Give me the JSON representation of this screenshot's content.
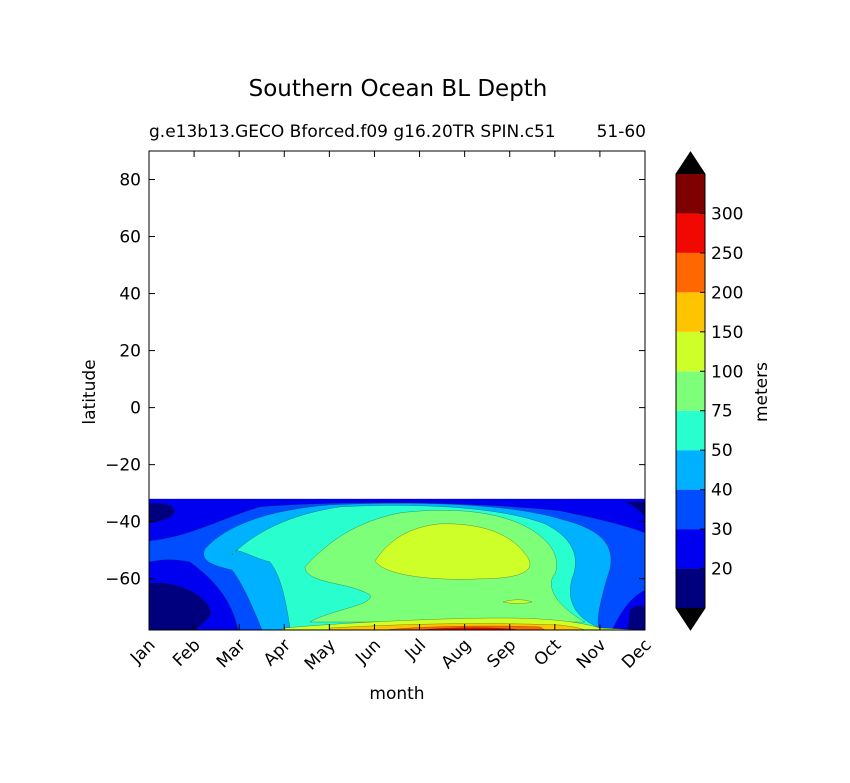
{
  "chart_data": {
    "type": "heatmap",
    "title": "Southern Ocean BL Depth",
    "subtitle_left": "g.e13b13.GECO Bforced.f09 g16.20TR SPIN.c51",
    "subtitle_right": "51-60",
    "xlabel": "month",
    "ylabel": "latitude",
    "x_categories": [
      "Jan",
      "Feb",
      "Mar",
      "Apr",
      "May",
      "Jun",
      "Jul",
      "Aug",
      "Sep",
      "Oct",
      "Nov",
      "Dec"
    ],
    "yticks": [
      80,
      60,
      40,
      20,
      0,
      -20,
      -40,
      -60
    ],
    "ylim": [
      -78,
      90
    ],
    "data_lat_range": [
      -78,
      -32
    ],
    "colorbar": {
      "label": "meters",
      "ticks": [
        "20",
        "30",
        "40",
        "50",
        "75",
        "100",
        "150",
        "200",
        "250",
        "300"
      ],
      "levels": [
        {
          "min": 10,
          "max": 20,
          "color": "#00007f"
        },
        {
          "min": 20,
          "max": 30,
          "color": "#0000f1"
        },
        {
          "min": 30,
          "max": 40,
          "color": "#004dff"
        },
        {
          "min": 40,
          "max": 50,
          "color": "#00b1ff"
        },
        {
          "min": 50,
          "max": 75,
          "color": "#29ffce"
        },
        {
          "min": 75,
          "max": 100,
          "color": "#7dff7a"
        },
        {
          "min": 100,
          "max": 150,
          "color": "#ceff29"
        },
        {
          "min": 150,
          "max": 200,
          "color": "#ffc400"
        },
        {
          "min": 200,
          "max": 250,
          "color": "#ff6800"
        },
        {
          "min": 250,
          "max": 300,
          "color": "#f10800"
        },
        {
          "min": 300,
          "max": 350,
          "color": "#7f0000"
        }
      ],
      "extend_low_color": "#000000",
      "extend_high_color": "#000000"
    }
  }
}
